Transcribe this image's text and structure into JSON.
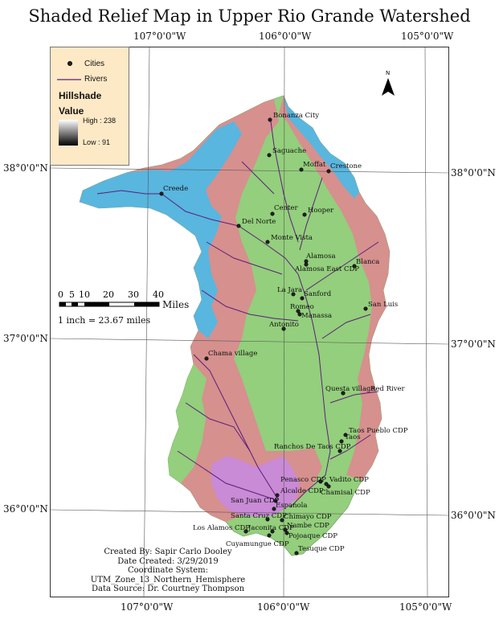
{
  "title": "Shaded Relief Map in Upper Rio Grande Watershed",
  "graticule": {
    "longitudes": [
      "107°0'0\"W",
      "106°0'0\"W",
      "105°0'0\"W"
    ],
    "latitudes": [
      "38°0'0\"N",
      "37°0'0\"N",
      "36°0'0\"N"
    ]
  },
  "legend": {
    "cities_label": "Cities",
    "rivers_label": "Rivers",
    "hillshade_label": "Hillshade",
    "value_label": "Value",
    "high_label": "High : 238",
    "low_label": "Low : 91"
  },
  "north_arrow": {
    "label": "N"
  },
  "scale_bar": {
    "ticks": [
      "0",
      "5",
      "10",
      "20",
      "30",
      "40"
    ],
    "units": "Miles",
    "ratio_text": "1 inch = 23.67 miles"
  },
  "cities": [
    {
      "name": "Bonanza City"
    },
    {
      "name": "Saguache"
    },
    {
      "name": "Moffat"
    },
    {
      "name": "Crestone"
    },
    {
      "name": "Creede"
    },
    {
      "name": "Center"
    },
    {
      "name": "Hooper"
    },
    {
      "name": "Del Norte"
    },
    {
      "name": "Monte Vista"
    },
    {
      "name": "Alamosa"
    },
    {
      "name": "Alamosa East CDP"
    },
    {
      "name": "Blanca"
    },
    {
      "name": "La Jara"
    },
    {
      "name": "Sanford"
    },
    {
      "name": "San Luis"
    },
    {
      "name": "Romeo"
    },
    {
      "name": "Manassa"
    },
    {
      "name": "Antonito"
    },
    {
      "name": "Chama village"
    },
    {
      "name": "Questa village"
    },
    {
      "name": "Red River"
    },
    {
      "name": "Taos Pueblo CDP"
    },
    {
      "name": "Taos"
    },
    {
      "name": "Ranchos De Taos CDP"
    },
    {
      "name": "Penasco CDP"
    },
    {
      "name": "Vadito CDP"
    },
    {
      "name": "Chamisal CDP"
    },
    {
      "name": "Alcalde CDP"
    },
    {
      "name": "San Juan CDP"
    },
    {
      "name": "Espanola"
    },
    {
      "name": "Santa Cruz CDP"
    },
    {
      "name": "Chimayo CDP"
    },
    {
      "name": "Los Alamos CDP"
    },
    {
      "name": "Jaconita CDP"
    },
    {
      "name": "Nambe CDP"
    },
    {
      "name": "Pojoaque CDP"
    },
    {
      "name": "Cuyamungue CDP"
    },
    {
      "name": "Tesuque CDP"
    }
  ],
  "credits": {
    "created_by": "Created By: Sapir Carlo Dooley",
    "date_created": "Date Created: 3/29/2019",
    "coordinate_system": "Coordinate System: UTM_Zone_13_Northern_Hemisphere",
    "data_source": "Data Source: Dr. Courtney Thompson"
  },
  "colors": {
    "valley": "#93cf7c",
    "mountain": "#d6908e",
    "high_peaks": "#58b6df",
    "southern_zone": "#c98ad6",
    "rivers": "#5b1f7a",
    "legend_bg": "#fde9c6"
  }
}
